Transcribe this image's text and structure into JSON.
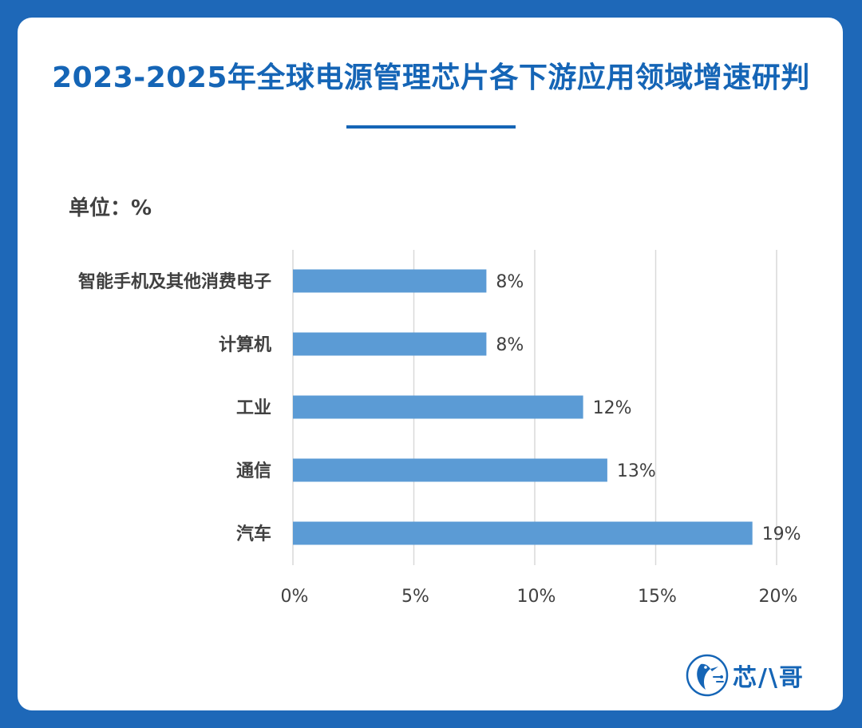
{
  "header": {
    "title": "2023-2025年全球电源管理芯片各下游应用领域增速研判",
    "unit_label": "单位：%"
  },
  "brand": {
    "name": "芯八哥",
    "icon": "bird-logo-icon",
    "display": "芯/\\哥"
  },
  "colors": {
    "background": "#1e68b8",
    "accent": "#1565b6",
    "bar": "#5b9bd5"
  },
  "chart_data": {
    "type": "bar",
    "orientation": "horizontal",
    "categories": [
      "智能手机及其他消费电子",
      "计算机",
      "工业",
      "通信",
      "汽车"
    ],
    "values": [
      8,
      8,
      12,
      13,
      19
    ],
    "data_labels": [
      "8%",
      "8%",
      "12%",
      "13%",
      "19%"
    ],
    "xlim": [
      0,
      20
    ],
    "xticks": [
      0,
      5,
      10,
      15,
      20
    ],
    "xtick_labels": [
      "0%",
      "5%",
      "10%",
      "15%",
      "20%"
    ],
    "grid": true,
    "legend": "none"
  }
}
